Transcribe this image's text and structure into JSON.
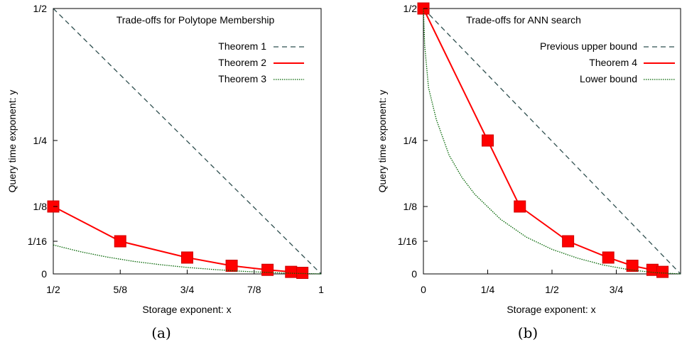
{
  "chart_data": [
    {
      "type": "line",
      "title": "Trade-offs for Polytope Membership",
      "xlabel": "Storage exponent: x",
      "ylabel": "Query time exponent: y",
      "caption": "(a)",
      "xlim": [
        0.5,
        1
      ],
      "ylim": [
        0,
        0.5
      ],
      "x_ticks": [
        {
          "value": 0.5,
          "label": "1/2"
        },
        {
          "value": 0.625,
          "label": "5/8"
        },
        {
          "value": 0.75,
          "label": "3/4"
        },
        {
          "value": 0.875,
          "label": "7/8"
        },
        {
          "value": 1,
          "label": "1"
        }
      ],
      "y_ticks": [
        {
          "value": 0,
          "label": "0"
        },
        {
          "value": 0.0625,
          "label": "1/16"
        },
        {
          "value": 0.125,
          "label": "1/8"
        },
        {
          "value": 0.25,
          "label": "1/4"
        },
        {
          "value": 0.5,
          "label": "1/2"
        }
      ],
      "legend_position": "top-right",
      "series": [
        {
          "name": "Theorem 1",
          "style": "dashed",
          "color": "#2f4f4f",
          "x": [
            0.5,
            1
          ],
          "y": [
            0.5,
            0
          ]
        },
        {
          "name": "Theorem 2",
          "style": "solid-markers",
          "color": "#ff0000",
          "x": [
            0.5,
            0.625,
            0.75,
            0.833,
            0.9,
            0.944,
            0.965
          ],
          "y": [
            0.125,
            0.0625,
            0.0313,
            0.0156,
            0.0078,
            0.0039,
            0.002
          ]
        },
        {
          "name": "Theorem 3",
          "style": "dotted",
          "color": "#006400",
          "x": [
            0.5,
            0.55,
            0.6,
            0.65,
            0.7,
            0.75,
            0.8,
            0.85,
            0.9,
            0.95,
            1
          ],
          "y": [
            0.0555,
            0.0426,
            0.0323,
            0.0241,
            0.0176,
            0.0124,
            0.0084,
            0.0052,
            0.0028,
            0.0011,
            0
          ]
        }
      ]
    },
    {
      "type": "line",
      "title": "Trade-offs for ANN search",
      "xlabel": "Storage exponent: x",
      "ylabel": "Query time exponent: y",
      "caption": "(b)",
      "xlim": [
        0,
        1
      ],
      "ylim": [
        0,
        0.5
      ],
      "x_ticks": [
        {
          "value": 0,
          "label": "0"
        },
        {
          "value": 0.25,
          "label": "1/4"
        },
        {
          "value": 0.5,
          "label": "1/2"
        },
        {
          "value": 0.75,
          "label": "3/4"
        }
      ],
      "y_ticks": [
        {
          "value": 0,
          "label": "0"
        },
        {
          "value": 0.0625,
          "label": "1/16"
        },
        {
          "value": 0.125,
          "label": "1/8"
        },
        {
          "value": 0.25,
          "label": "1/4"
        },
        {
          "value": 0.5,
          "label": "1/2"
        }
      ],
      "legend_position": "top-right",
      "series": [
        {
          "name": "Previous upper bound",
          "style": "dashed",
          "color": "#2f4f4f",
          "x": [
            0,
            1
          ],
          "y": [
            0.5,
            0
          ]
        },
        {
          "name": "Theorem 4",
          "style": "solid-markers",
          "color": "#ff0000",
          "x": [
            0,
            0.25,
            0.375,
            0.5625,
            0.7188,
            0.8125,
            0.8906,
            0.9297
          ],
          "y": [
            0.5,
            0.25,
            0.125,
            0.0625,
            0.0313,
            0.0156,
            0.0078,
            0.0039
          ]
        },
        {
          "name": "Lower bound",
          "style": "dotted",
          "color": "#006400",
          "x": [
            0,
            0.005,
            0.02,
            0.05,
            0.1,
            0.15,
            0.2,
            0.3,
            0.4,
            0.5,
            0.6,
            0.7,
            0.8,
            0.9,
            1
          ],
          "y": [
            0.5,
            0.43,
            0.35,
            0.29,
            0.222,
            0.18,
            0.148,
            0.102,
            0.07,
            0.047,
            0.03,
            0.017,
            0.008,
            0.0025,
            0
          ]
        }
      ]
    }
  ]
}
